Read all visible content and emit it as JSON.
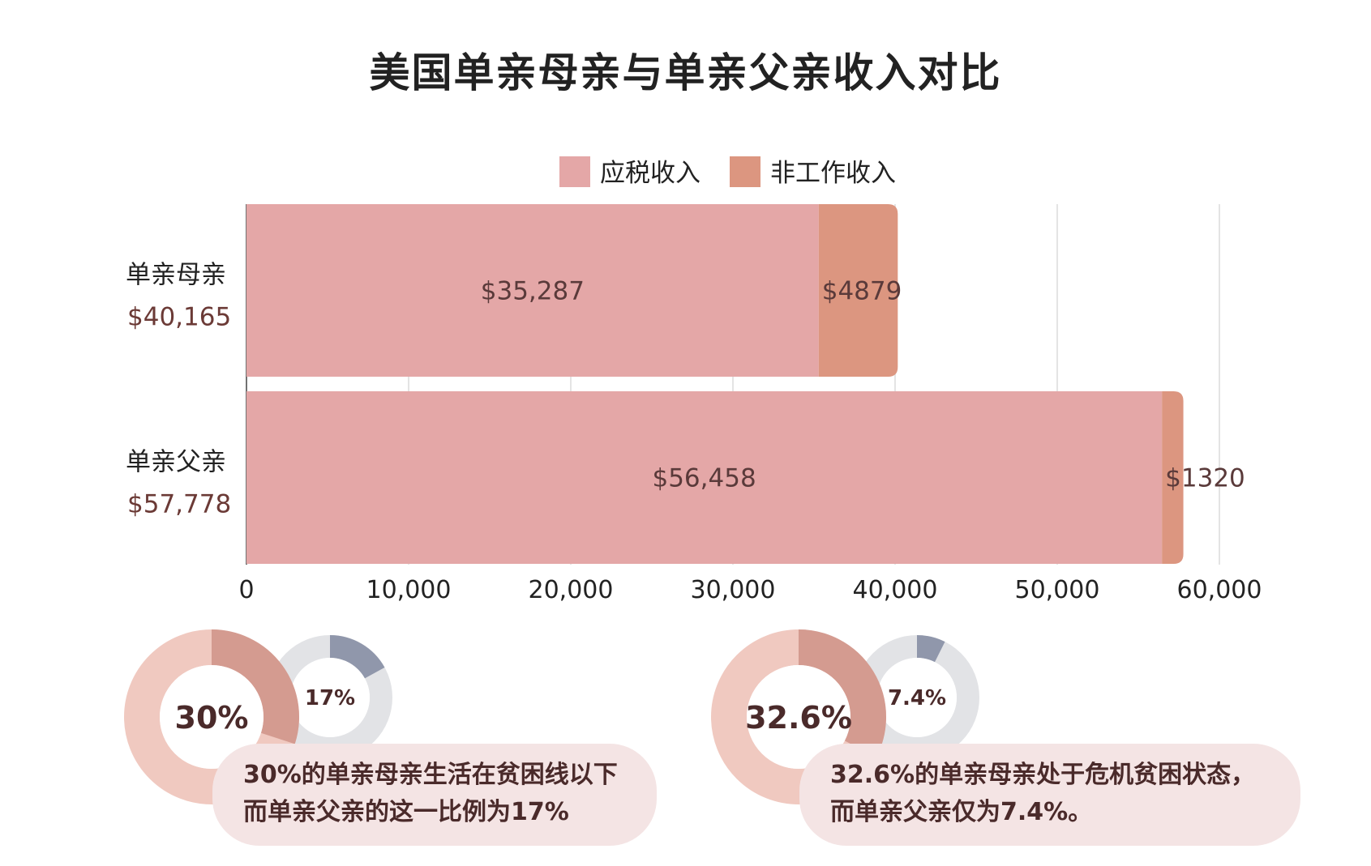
{
  "title": "美国单亲母亲与单亲父亲收入对比",
  "legend": [
    {
      "label": "应税收入",
      "color": "#e4a7a7"
    },
    {
      "label": "非工作收入",
      "color": "#dc9680"
    }
  ],
  "chart_data": {
    "type": "bar",
    "orientation": "horizontal",
    "stacked": true,
    "categories": [
      "单亲母亲",
      "单亲父亲"
    ],
    "category_totals": [
      "$40,165",
      "$57,778"
    ],
    "series": [
      {
        "name": "应税收入",
        "values": [
          35287,
          56458
        ],
        "labels": [
          "$35,287",
          "$56,458"
        ],
        "color": "#e4a7a7"
      },
      {
        "name": "非工作收入",
        "values": [
          4879,
          1320
        ],
        "labels": [
          "$4879",
          "$1320"
        ],
        "color": "#dc9680"
      }
    ],
    "xlim": [
      0,
      60000
    ],
    "x_ticks": [
      0,
      10000,
      20000,
      30000,
      40000,
      50000,
      60000
    ],
    "x_tick_labels": [
      "0",
      "10,000",
      "20,000",
      "30,000",
      "40,000",
      "50,000",
      "60,000"
    ],
    "grid": true,
    "legend_position": "top-center"
  },
  "stats": [
    {
      "mother_value": 30,
      "mother_label": "30%",
      "father_value": 17,
      "father_label": "17%",
      "caption_line1": "30%的单亲母亲生活在贫困线以下",
      "caption_line2": "而单亲父亲的这一比例为17%"
    },
    {
      "mother_value": 32.6,
      "mother_label": "32.6%",
      "father_value": 7.4,
      "father_label": "7.4%",
      "caption_line1": "32.6%的单亲母亲处于危机贫困状态，",
      "caption_line2": "而单亲父亲仅为7.4%。"
    }
  ],
  "colors": {
    "mother_ring": "#f0c9c0",
    "mother_fill": "#d49b90",
    "father_ring": "#e2e3e6",
    "father_fill": "#9097ab",
    "total_text": "#6b3a36",
    "stat_text": "#4a2a2a"
  }
}
